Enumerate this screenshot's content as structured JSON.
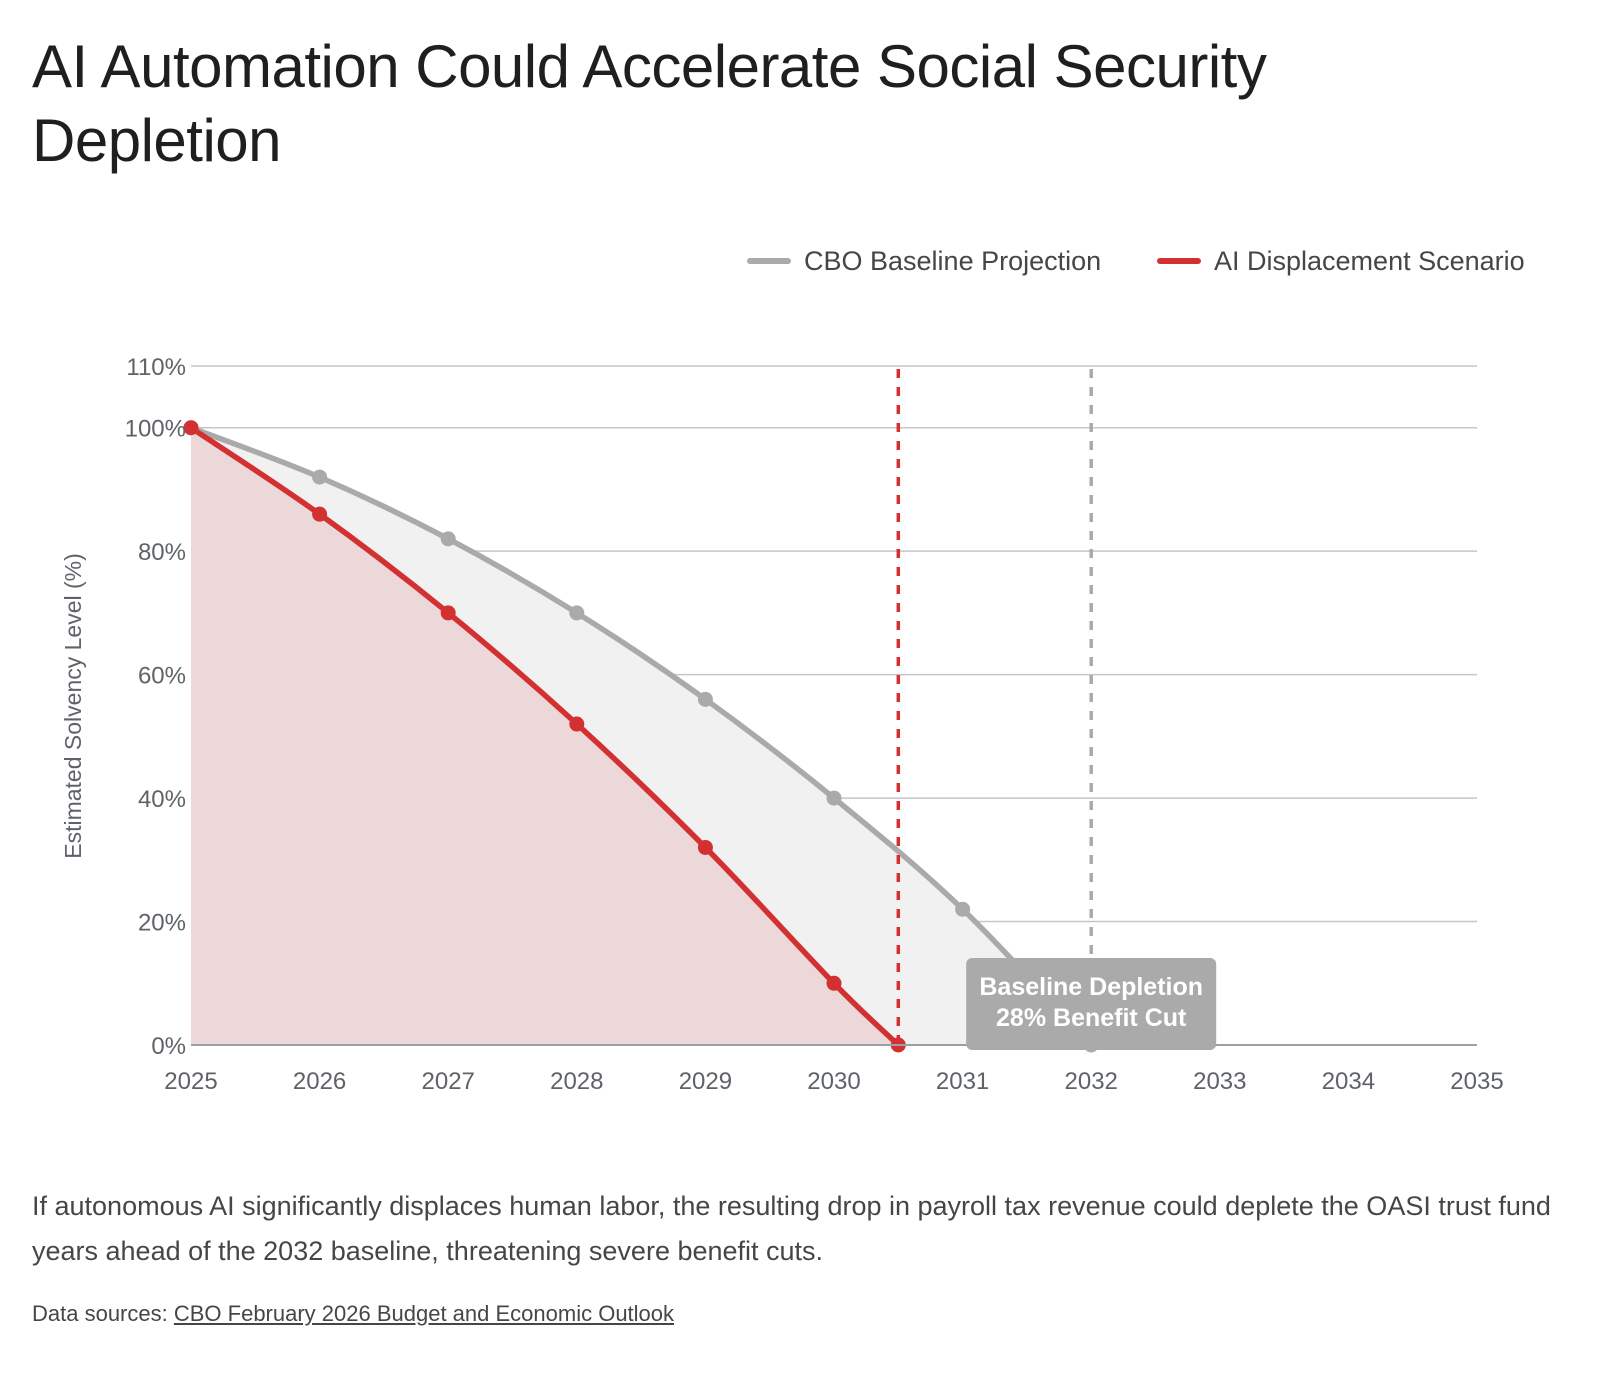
{
  "page": {
    "title": "AI Automation Could Accelerate Social Security Depletion",
    "caption": "If autonomous AI significantly displaces human labor, the resulting drop in payroll tax revenue could deplete the OASI trust fund years ahead of the 2032 baseline, threatening severe benefit cuts.",
    "sources_label": "Data sources:",
    "sources_link": "CBO February 2026 Budget and Economic Outlook"
  },
  "chart_data": {
    "type": "line",
    "title": "AI Automation Could Accelerate Social Security Depletion",
    "xlabel": "",
    "ylabel": "Estimated Solvency Level (%)",
    "xlim": [
      2025,
      2035
    ],
    "ylim": [
      0,
      110
    ],
    "x_ticks": [
      "2025",
      "2026",
      "2027",
      "2028",
      "2029",
      "2030",
      "2031",
      "2032",
      "2033",
      "2034",
      "2035"
    ],
    "y_ticks": [
      {
        "value": 0,
        "label": "0%"
      },
      {
        "value": 20,
        "label": "20%"
      },
      {
        "value": 40,
        "label": "40%"
      },
      {
        "value": 60,
        "label": "60%"
      },
      {
        "value": 80,
        "label": "80%"
      },
      {
        "value": 100,
        "label": "100%"
      },
      {
        "value": 110,
        "label": "110%"
      }
    ],
    "grid": true,
    "area_fill": true,
    "legend_position": "top-right",
    "series": [
      {
        "name": "CBO Baseline Projection",
        "color": "#aaaaaa",
        "area_color": "#f1f1f1",
        "x": [
          2025,
          2026,
          2027,
          2028,
          2029,
          2030,
          2031,
          2032
        ],
        "values": [
          100,
          92,
          82,
          70,
          56,
          40,
          22,
          0
        ]
      },
      {
        "name": "AI Displacement Scenario",
        "color": "#d33131",
        "area_color": "#ecd8d9",
        "x": [
          2025,
          2026,
          2027,
          2028,
          2029,
          2030,
          2030.5
        ],
        "values": [
          100,
          86,
          70,
          52,
          32,
          10,
          0
        ]
      }
    ],
    "reference_lines": [
      {
        "x": 2030.5,
        "color": "#d33131",
        "style": "dashed"
      },
      {
        "x": 2032,
        "color": "#aaaaaa",
        "style": "dashed"
      }
    ],
    "annotations": [
      {
        "x": 2032,
        "lines": [
          "Baseline Depletion",
          "28% Benefit Cut"
        ],
        "background": "#aaaaaa",
        "text_color": "#ffffff"
      }
    ]
  }
}
